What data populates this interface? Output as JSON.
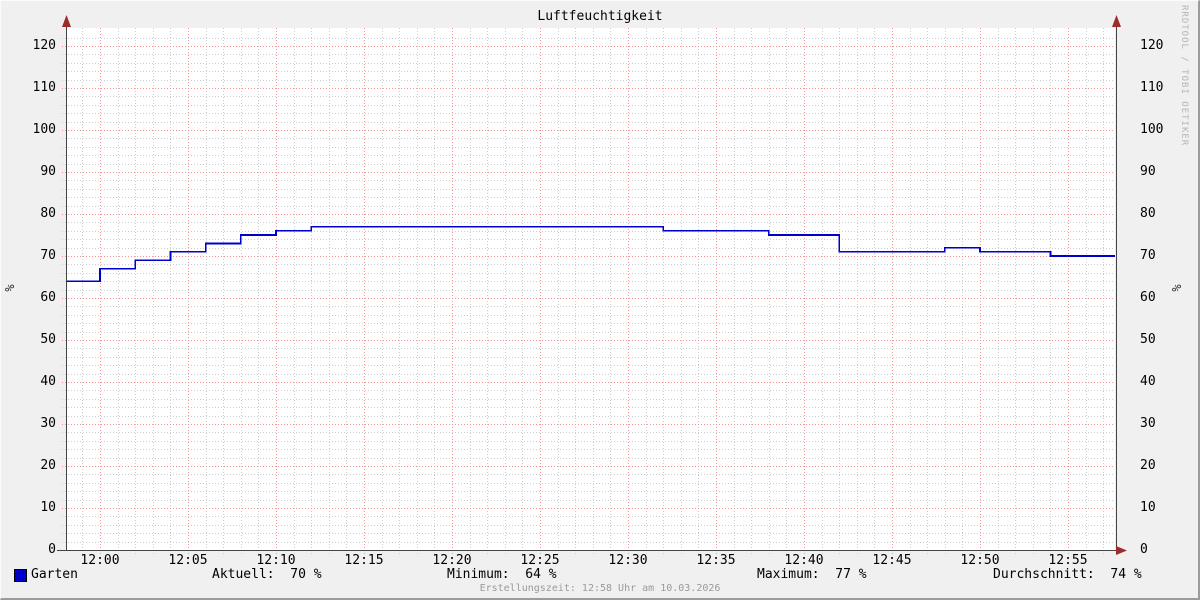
{
  "title": "Luftfeuchtigkeit",
  "watermark": "RRDTOOL / TOBI OETIKER",
  "footer": "Erstellungszeit: 12:58 Uhr am 10.03.2026",
  "axis": {
    "left_unit": "%",
    "right_unit": "%"
  },
  "legend": {
    "series_label": "Garten",
    "series_color": "#0000cc",
    "stats": [
      {
        "id": "current",
        "label": "Aktuell:",
        "value": "70 %"
      },
      {
        "id": "minimum",
        "label": "Minimum:",
        "value": "64 %"
      },
      {
        "id": "maximum",
        "label": "Maximum:",
        "value": "77 %"
      },
      {
        "id": "average",
        "label": "Durchschnitt:",
        "value": "74 %"
      }
    ]
  },
  "chart_data": {
    "type": "line",
    "style": "step-after",
    "title": "Luftfeuchtigkeit",
    "xlabel": "",
    "ylabel": "%",
    "ylim": [
      0,
      124
    ],
    "y_major_ticks": [
      0,
      10,
      20,
      30,
      40,
      50,
      60,
      70,
      80,
      90,
      100,
      110,
      120
    ],
    "y_minor_step": 2,
    "x_range": [
      "11:58",
      "12:58"
    ],
    "x_major_ticks": [
      "12:00",
      "12:05",
      "12:10",
      "12:15",
      "12:20",
      "12:25",
      "12:30",
      "12:35",
      "12:40",
      "12:45",
      "12:50",
      "12:55"
    ],
    "x_minor_step_minutes": 1,
    "grid": {
      "minor_color": "#cdcdcd",
      "major_color": "#f19595",
      "canvas": "#ffffff",
      "dotted": true
    },
    "legend_position": "bottom",
    "series": [
      {
        "name": "Garten",
        "color": "#0000cc",
        "steps": [
          {
            "time": "11:58",
            "value": 64
          },
          {
            "time": "12:00",
            "value": 67
          },
          {
            "time": "12:02",
            "value": 69
          },
          {
            "time": "12:04",
            "value": 71
          },
          {
            "time": "12:06",
            "value": 73
          },
          {
            "time": "12:08",
            "value": 75
          },
          {
            "time": "12:10",
            "value": 76
          },
          {
            "time": "12:12",
            "value": 77
          },
          {
            "time": "12:32",
            "value": 76
          },
          {
            "time": "12:38",
            "value": 75
          },
          {
            "time": "12:42",
            "value": 71
          },
          {
            "time": "12:48",
            "value": 72
          },
          {
            "time": "12:50",
            "value": 71
          },
          {
            "time": "12:54",
            "value": 70
          }
        ]
      }
    ],
    "stats": {
      "current": 70,
      "minimum": 64,
      "maximum": 77,
      "average": 74
    }
  },
  "colors": {
    "background": "#f0f0f0",
    "axis": "#444444",
    "arrow": "#9c2b2b",
    "text": "#000000",
    "muted_text": "#9a9a9a",
    "watermark_text": "#b5b5b5"
  }
}
